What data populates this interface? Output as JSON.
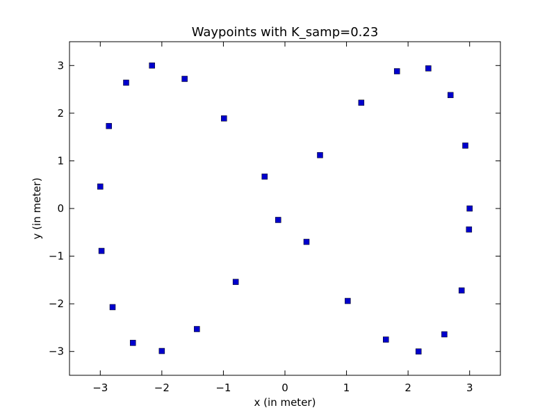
{
  "chart_data": {
    "type": "scatter",
    "title": "Waypoints with K_samp=0.23",
    "xlabel": "x (in meter)",
    "ylabel": "y (in meter)",
    "xlim": [
      -3.5,
      3.5
    ],
    "ylim": [
      -3.5,
      3.5
    ],
    "xticks": [
      -3,
      -2,
      -1,
      0,
      1,
      2,
      3
    ],
    "yticks": [
      -3,
      -2,
      -1,
      0,
      1,
      2,
      3
    ],
    "xtick_labels": [
      "−3",
      "−2",
      "−1",
      "0",
      "1",
      "2",
      "3"
    ],
    "ytick_labels": [
      "−3",
      "−2",
      "−1",
      "0",
      "1",
      "2",
      "3"
    ],
    "grid": false,
    "marker": "square",
    "marker_color": "#0000cc",
    "series": [
      {
        "points": [
          [
            3.0,
            0.0
          ],
          [
            2.93,
            1.32
          ],
          [
            2.69,
            2.38
          ],
          [
            2.33,
            2.94
          ],
          [
            1.82,
            2.88
          ],
          [
            1.24,
            2.22
          ],
          [
            0.57,
            1.12
          ],
          [
            -0.33,
            0.67
          ],
          [
            -0.99,
            1.89
          ],
          [
            -1.63,
            2.72
          ],
          [
            -2.16,
            3.0
          ],
          [
            -2.58,
            2.64
          ],
          [
            -2.86,
            1.73
          ],
          [
            -3.0,
            0.46
          ],
          [
            -2.98,
            -0.89
          ],
          [
            -2.8,
            -2.07
          ],
          [
            -2.47,
            -2.82
          ],
          [
            -2.0,
            -2.99
          ],
          [
            -1.43,
            -2.53
          ],
          [
            -0.8,
            -1.54
          ],
          [
            -0.11,
            -0.24
          ],
          [
            0.35,
            -0.7
          ],
          [
            1.02,
            -1.94
          ],
          [
            1.64,
            -2.75
          ],
          [
            2.17,
            -3.0
          ],
          [
            2.59,
            -2.64
          ],
          [
            2.87,
            -1.72
          ],
          [
            2.99,
            -0.44
          ]
        ]
      }
    ]
  }
}
